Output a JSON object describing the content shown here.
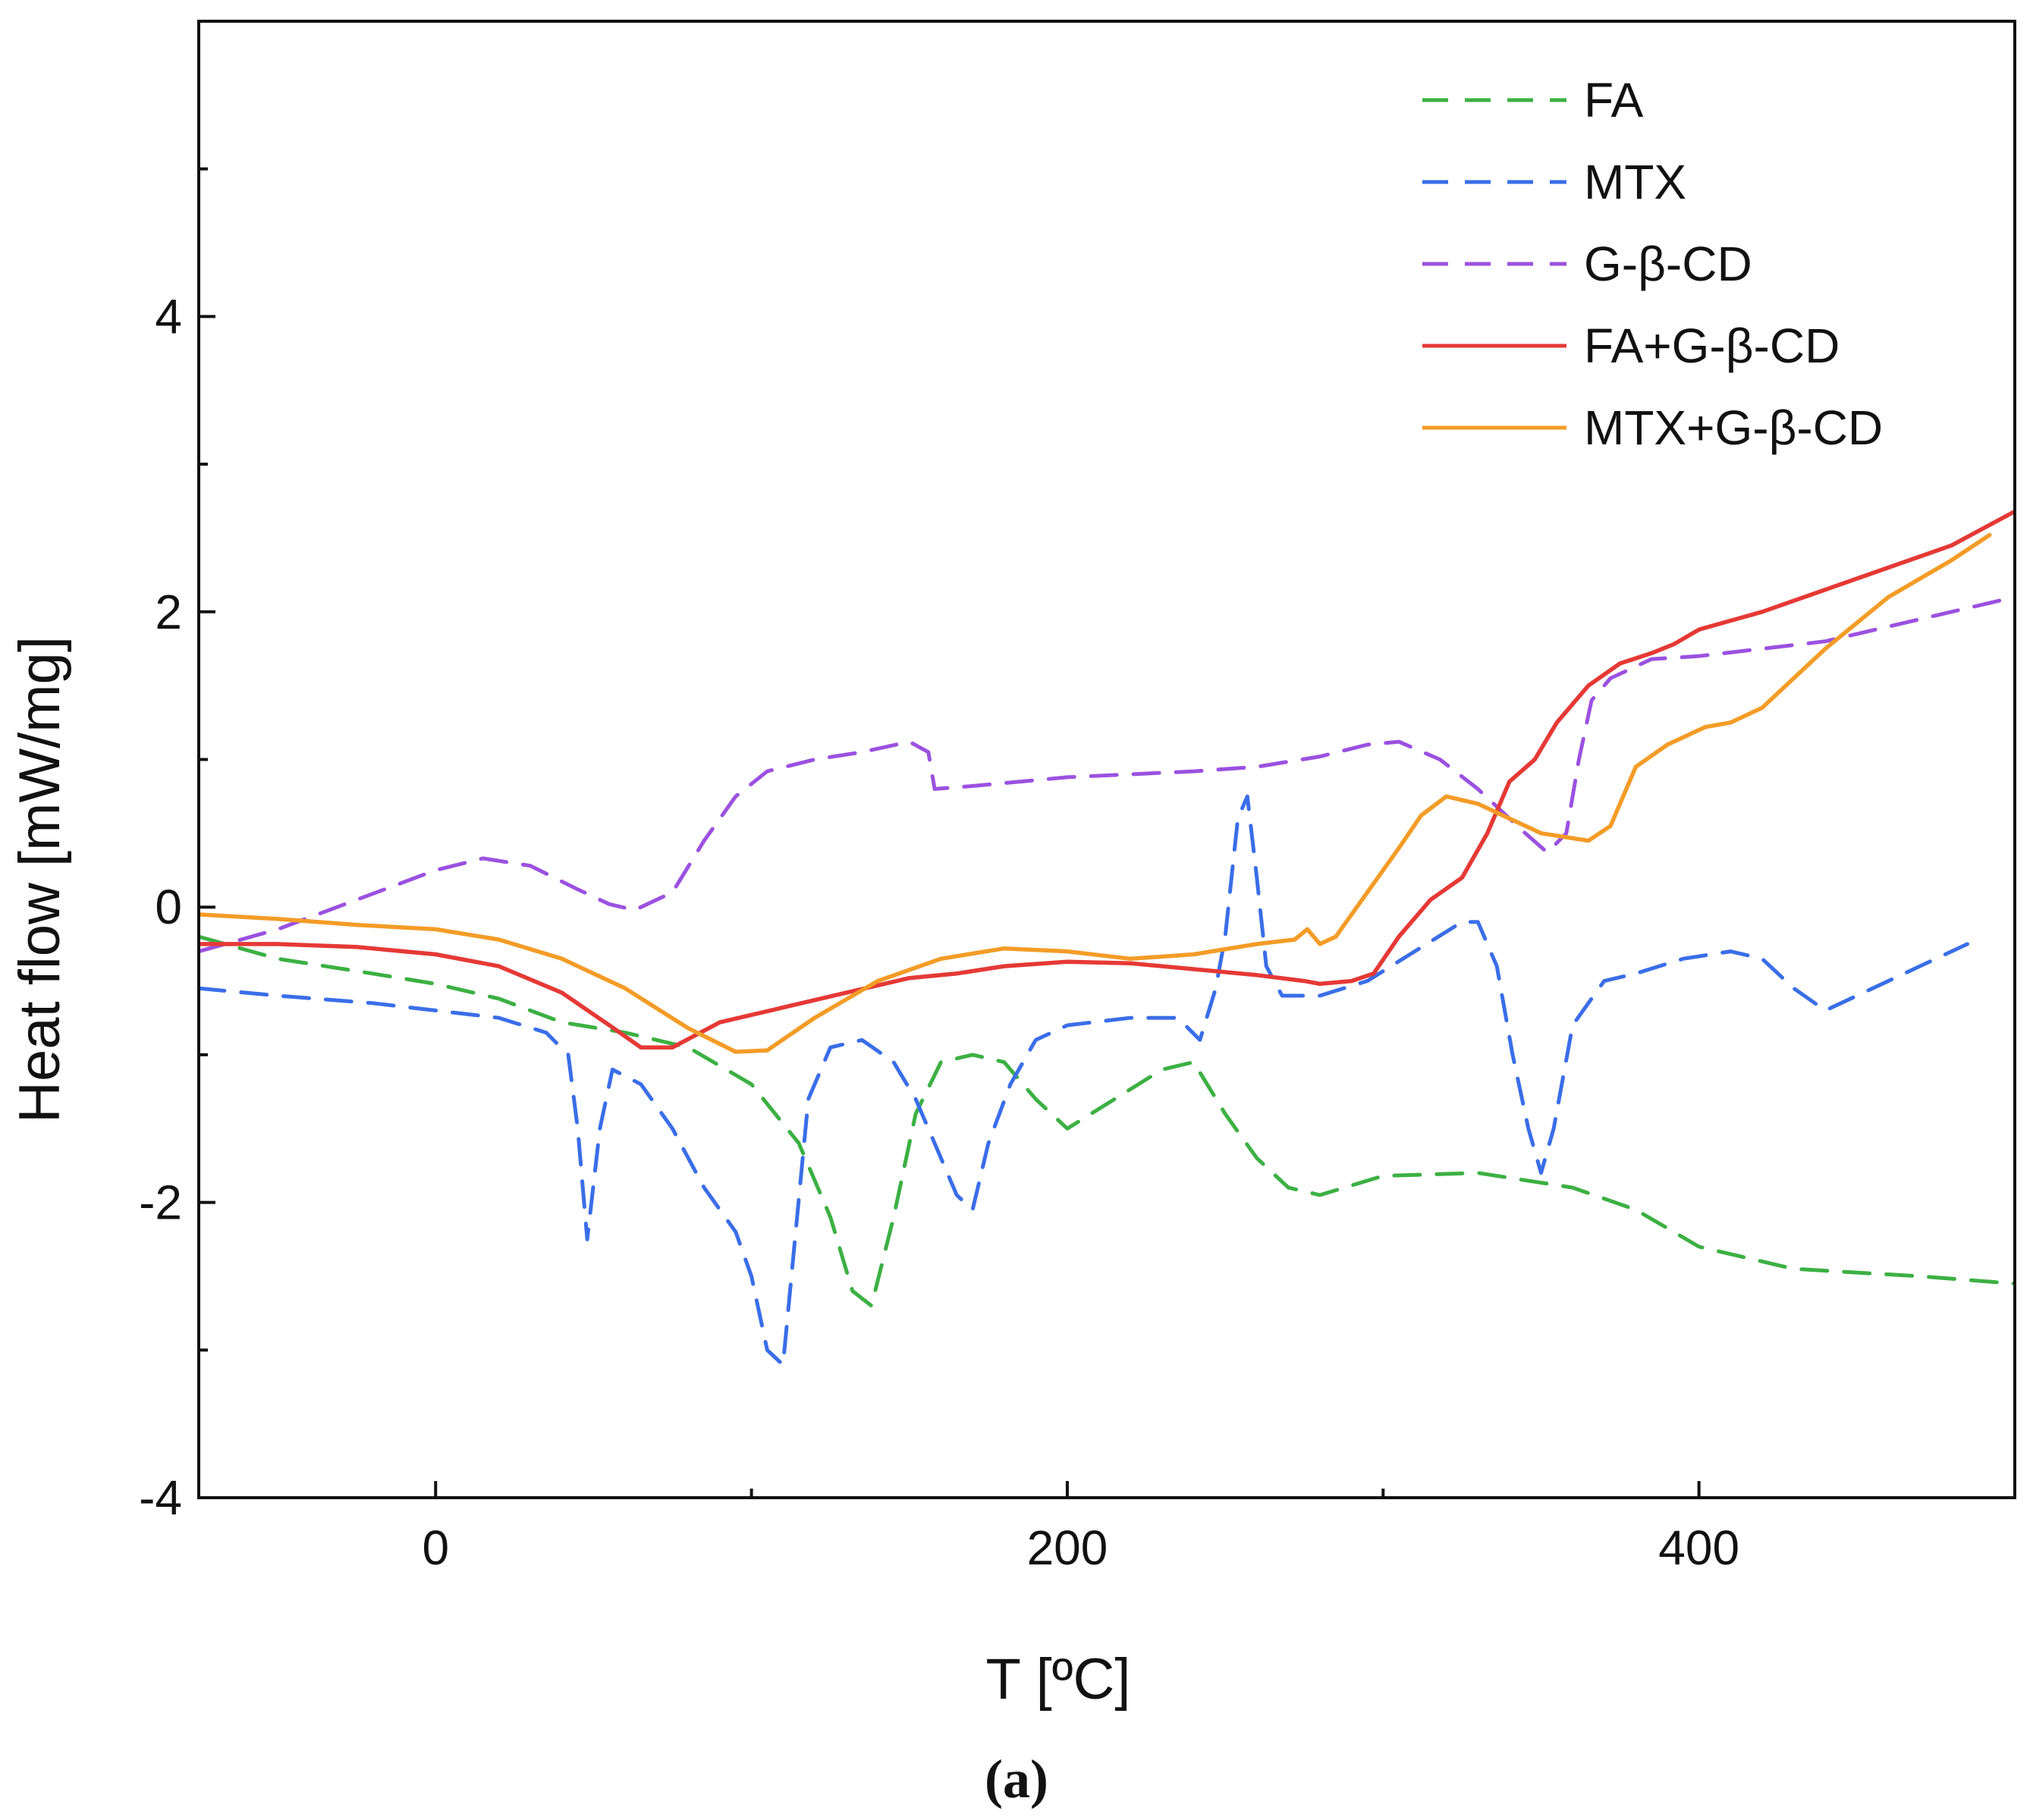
{
  "chart_data": {
    "type": "line",
    "title": "",
    "xlabel": "T [ºC]",
    "ylabel": "Heat flow [mW/mg]",
    "caption": "(a)",
    "xlim": [
      -75,
      500
    ],
    "ylim": [
      -4,
      6
    ],
    "xticks": [
      0,
      200,
      400
    ],
    "yticks": [
      -4,
      -2,
      0,
      2,
      4
    ],
    "xtick_labels": [
      "0",
      "200",
      "400"
    ],
    "ytick_labels": [
      "-4",
      "-2",
      "0",
      "2",
      "4"
    ],
    "legend_position": "top-right",
    "series": [
      {
        "name": "FA",
        "color": "#3cb043",
        "dash": "dashed",
        "points": [
          [
            -75,
            -0.2
          ],
          [
            -50,
            -0.35
          ],
          [
            -20,
            -0.45
          ],
          [
            0,
            -0.52
          ],
          [
            20,
            -0.62
          ],
          [
            40,
            -0.78
          ],
          [
            60,
            -0.85
          ],
          [
            80,
            -0.95
          ],
          [
            100,
            -1.2
          ],
          [
            115,
            -1.6
          ],
          [
            125,
            -2.1
          ],
          [
            132,
            -2.6
          ],
          [
            138,
            -2.7
          ],
          [
            145,
            -2.1
          ],
          [
            152,
            -1.4
          ],
          [
            160,
            -1.05
          ],
          [
            170,
            -1.0
          ],
          [
            180,
            -1.05
          ],
          [
            190,
            -1.3
          ],
          [
            200,
            -1.5
          ],
          [
            215,
            -1.3
          ],
          [
            230,
            -1.1
          ],
          [
            240,
            -1.05
          ],
          [
            250,
            -1.4
          ],
          [
            260,
            -1.7
          ],
          [
            270,
            -1.9
          ],
          [
            280,
            -1.95
          ],
          [
            300,
            -1.82
          ],
          [
            330,
            -1.8
          ],
          [
            360,
            -1.9
          ],
          [
            380,
            -2.05
          ],
          [
            400,
            -2.3
          ],
          [
            430,
            -2.45
          ],
          [
            470,
            -2.5
          ],
          [
            500,
            -2.55
          ]
        ]
      },
      {
        "name": "MTX",
        "color": "#3a6ee8",
        "dash": "dashed",
        "points": [
          [
            -75,
            -0.55
          ],
          [
            -50,
            -0.6
          ],
          [
            -20,
            -0.65
          ],
          [
            0,
            -0.7
          ],
          [
            20,
            -0.75
          ],
          [
            35,
            -0.85
          ],
          [
            42,
            -1.0
          ],
          [
            45,
            -1.5
          ],
          [
            48,
            -2.25
          ],
          [
            52,
            -1.5
          ],
          [
            56,
            -1.1
          ],
          [
            65,
            -1.2
          ],
          [
            75,
            -1.5
          ],
          [
            85,
            -1.9
          ],
          [
            95,
            -2.2
          ],
          [
            100,
            -2.5
          ],
          [
            105,
            -3.0
          ],
          [
            110,
            -3.1
          ],
          [
            114,
            -2.2
          ],
          [
            118,
            -1.3
          ],
          [
            125,
            -0.95
          ],
          [
            135,
            -0.9
          ],
          [
            145,
            -1.05
          ],
          [
            152,
            -1.3
          ],
          [
            158,
            -1.6
          ],
          [
            165,
            -1.95
          ],
          [
            170,
            -2.05
          ],
          [
            175,
            -1.6
          ],
          [
            182,
            -1.2
          ],
          [
            190,
            -0.9
          ],
          [
            200,
            -0.8
          ],
          [
            220,
            -0.75
          ],
          [
            235,
            -0.75
          ],
          [
            242,
            -0.9
          ],
          [
            247,
            -0.55
          ],
          [
            250,
            -0.2
          ],
          [
            254,
            0.6
          ],
          [
            257,
            0.75
          ],
          [
            260,
            0.2
          ],
          [
            263,
            -0.4
          ],
          [
            268,
            -0.6
          ],
          [
            280,
            -0.6
          ],
          [
            295,
            -0.5
          ],
          [
            310,
            -0.3
          ],
          [
            325,
            -0.1
          ],
          [
            330,
            -0.1
          ],
          [
            336,
            -0.4
          ],
          [
            341,
            -1.0
          ],
          [
            346,
            -1.5
          ],
          [
            350,
            -1.8
          ],
          [
            354,
            -1.5
          ],
          [
            360,
            -0.8
          ],
          [
            370,
            -0.5
          ],
          [
            380,
            -0.45
          ],
          [
            395,
            -0.35
          ],
          [
            410,
            -0.3
          ],
          [
            420,
            -0.35
          ],
          [
            430,
            -0.55
          ],
          [
            440,
            -0.7
          ],
          [
            455,
            -0.55
          ],
          [
            475,
            -0.35
          ],
          [
            485,
            -0.25
          ]
        ]
      },
      {
        "name": "G-β-CD",
        "color": "#9b51e0",
        "dash": "dashed",
        "points": [
          [
            -75,
            -0.3
          ],
          [
            -50,
            -0.15
          ],
          [
            -25,
            0.05
          ],
          [
            0,
            0.25
          ],
          [
            15,
            0.33
          ],
          [
            30,
            0.28
          ],
          [
            45,
            0.12
          ],
          [
            55,
            0.02
          ],
          [
            63,
            -0.02
          ],
          [
            75,
            0.1
          ],
          [
            85,
            0.45
          ],
          [
            95,
            0.75
          ],
          [
            105,
            0.92
          ],
          [
            120,
            1.0
          ],
          [
            135,
            1.05
          ],
          [
            150,
            1.12
          ],
          [
            156,
            1.05
          ],
          [
            158,
            0.8
          ],
          [
            170,
            0.82
          ],
          [
            200,
            0.88
          ],
          [
            240,
            0.92
          ],
          [
            260,
            0.95
          ],
          [
            280,
            1.02
          ],
          [
            295,
            1.1
          ],
          [
            305,
            1.12
          ],
          [
            318,
            1.0
          ],
          [
            330,
            0.8
          ],
          [
            345,
            0.5
          ],
          [
            352,
            0.37
          ],
          [
            358,
            0.5
          ],
          [
            362,
            1.0
          ],
          [
            366,
            1.4
          ],
          [
            372,
            1.55
          ],
          [
            385,
            1.68
          ],
          [
            400,
            1.7
          ],
          [
            420,
            1.75
          ],
          [
            440,
            1.8
          ],
          [
            470,
            1.95
          ],
          [
            500,
            2.1
          ]
        ]
      },
      {
        "name": "FA+G-β-CD",
        "color": "#e53935",
        "dash": "solid",
        "points": [
          [
            -75,
            -0.25
          ],
          [
            -50,
            -0.25
          ],
          [
            -25,
            -0.27
          ],
          [
            0,
            -0.32
          ],
          [
            20,
            -0.4
          ],
          [
            40,
            -0.58
          ],
          [
            55,
            -0.8
          ],
          [
            65,
            -0.95
          ],
          [
            75,
            -0.95
          ],
          [
            90,
            -0.78
          ],
          [
            110,
            -0.68
          ],
          [
            130,
            -0.58
          ],
          [
            150,
            -0.48
          ],
          [
            165,
            -0.45
          ],
          [
            180,
            -0.4
          ],
          [
            200,
            -0.37
          ],
          [
            220,
            -0.38
          ],
          [
            240,
            -0.42
          ],
          [
            260,
            -0.46
          ],
          [
            275,
            -0.5
          ],
          [
            280,
            -0.52
          ],
          [
            290,
            -0.5
          ],
          [
            297,
            -0.45
          ],
          [
            305,
            -0.2
          ],
          [
            315,
            0.05
          ],
          [
            325,
            0.2
          ],
          [
            333,
            0.5
          ],
          [
            340,
            0.85
          ],
          [
            348,
            1.0
          ],
          [
            355,
            1.25
          ],
          [
            365,
            1.5
          ],
          [
            375,
            1.65
          ],
          [
            385,
            1.72
          ],
          [
            392,
            1.78
          ],
          [
            400,
            1.88
          ],
          [
            420,
            2.0
          ],
          [
            440,
            2.15
          ],
          [
            460,
            2.3
          ],
          [
            480,
            2.45
          ],
          [
            500,
            2.68
          ]
        ]
      },
      {
        "name": "MTX+G-β-CD",
        "color": "#f39c27",
        "dash": "solid",
        "points": [
          [
            -75,
            -0.05
          ],
          [
            -50,
            -0.08
          ],
          [
            -25,
            -0.12
          ],
          [
            0,
            -0.15
          ],
          [
            20,
            -0.22
          ],
          [
            40,
            -0.35
          ],
          [
            60,
            -0.55
          ],
          [
            80,
            -0.82
          ],
          [
            95,
            -0.98
          ],
          [
            105,
            -0.97
          ],
          [
            120,
            -0.75
          ],
          [
            140,
            -0.5
          ],
          [
            160,
            -0.35
          ],
          [
            180,
            -0.28
          ],
          [
            200,
            -0.3
          ],
          [
            220,
            -0.35
          ],
          [
            240,
            -0.32
          ],
          [
            260,
            -0.25
          ],
          [
            272,
            -0.22
          ],
          [
            276,
            -0.15
          ],
          [
            280,
            -0.25
          ],
          [
            285,
            -0.2
          ],
          [
            295,
            0.1
          ],
          [
            305,
            0.4
          ],
          [
            312,
            0.62
          ],
          [
            320,
            0.75
          ],
          [
            330,
            0.7
          ],
          [
            340,
            0.6
          ],
          [
            350,
            0.5
          ],
          [
            365,
            0.45
          ],
          [
            372,
            0.55
          ],
          [
            380,
            0.95
          ],
          [
            390,
            1.1
          ],
          [
            402,
            1.22
          ],
          [
            410,
            1.25
          ],
          [
            420,
            1.35
          ],
          [
            430,
            1.55
          ],
          [
            440,
            1.75
          ],
          [
            460,
            2.1
          ],
          [
            480,
            2.35
          ],
          [
            492,
            2.52
          ]
        ]
      }
    ]
  }
}
